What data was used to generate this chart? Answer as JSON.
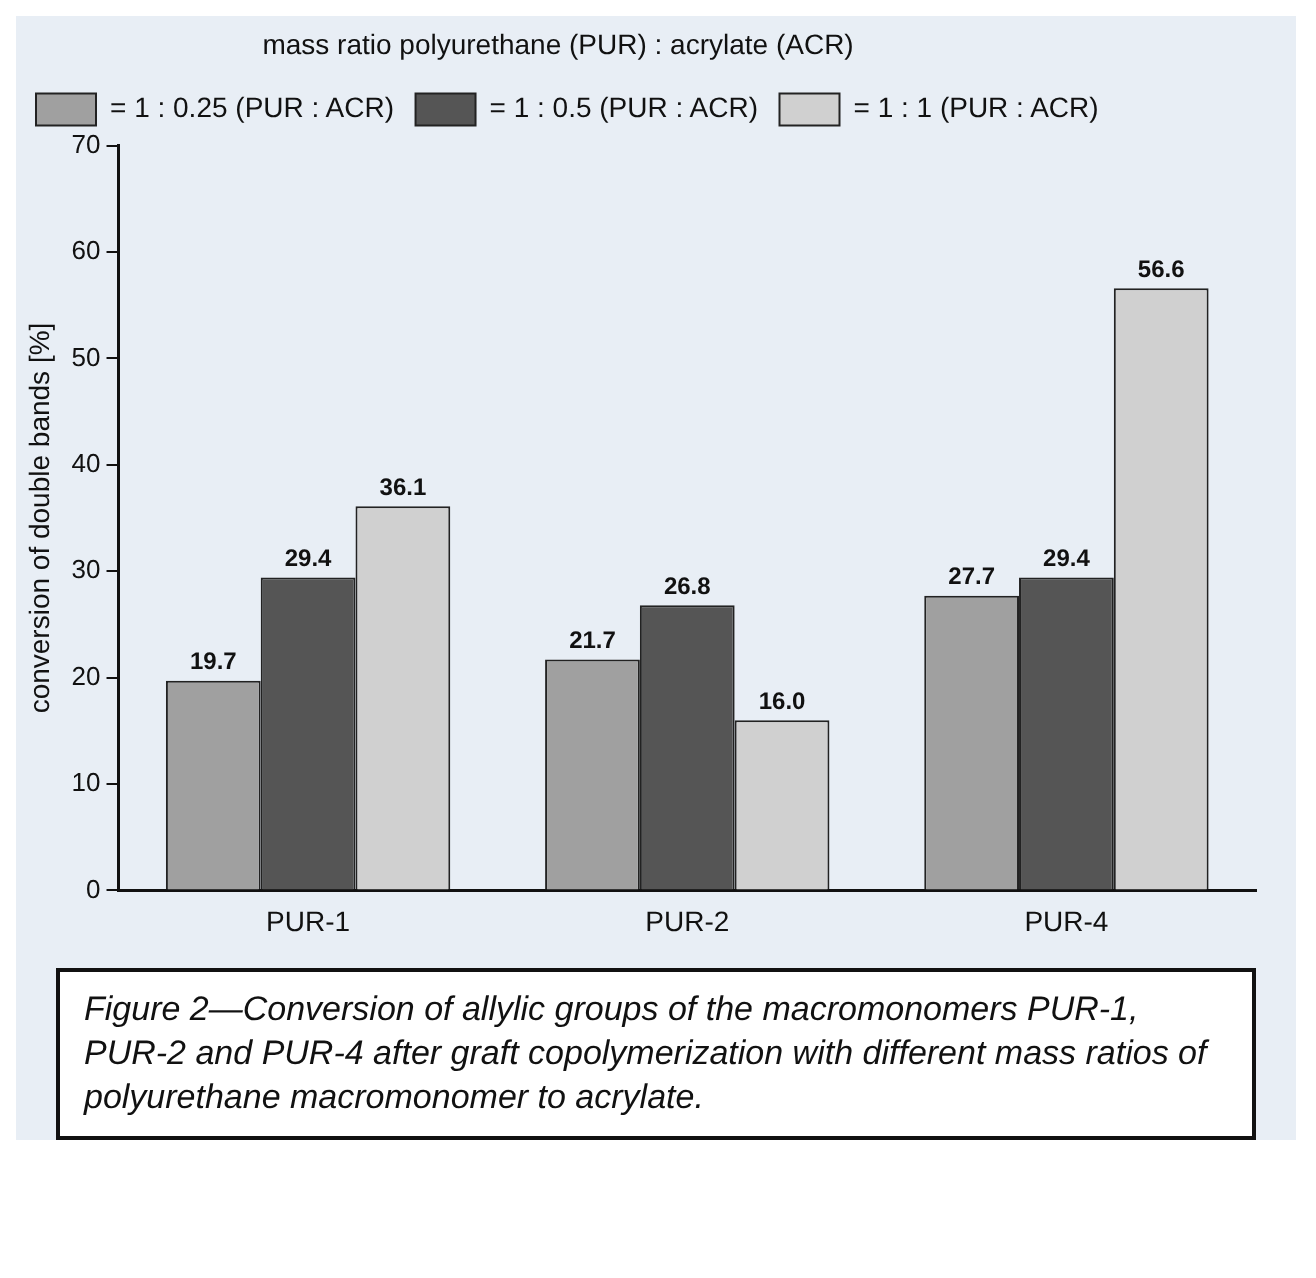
{
  "chart_data": {
    "type": "bar",
    "categories": [
      "PUR-1",
      "PUR-2",
      "PUR-4"
    ],
    "series": [
      {
        "name": "= 1 : 0.25 (PUR : ACR)",
        "color": "#a0a0a0",
        "values": [
          19.7,
          21.7,
          27.7
        ],
        "value_labels": [
          "19.7",
          "21.7",
          "27.7"
        ]
      },
      {
        "name": "= 1 : 0.5 (PUR : ACR)",
        "color": "#555555",
        "values": [
          29.4,
          26.8,
          29.4
        ],
        "value_labels": [
          "29.4",
          "26.8",
          "29.4"
        ]
      },
      {
        "name": "= 1 : 1 (PUR : ACR)",
        "color": "#d0d0d0",
        "values": [
          36.1,
          16.0,
          56.6
        ],
        "value_labels": [
          "36.1",
          "16.0",
          "56.6"
        ]
      }
    ],
    "ylabel": "conversion of double bands [%]",
    "legend_title": "mass ratio polyurethane (PUR) : acrylate (ACR)",
    "ylim": [
      0,
      70
    ],
    "yticks": [
      0,
      10,
      20,
      30,
      40,
      50,
      60,
      70
    ],
    "grid": false,
    "legend": "top left",
    "annotations": [
      "Figure 2—Conversion of allylic groups of the macromonomers PUR-1, PUR-2 and PUR-4 after graft copolymerization with different mass ratios of polyurethane macromonomer to acrylate."
    ]
  }
}
